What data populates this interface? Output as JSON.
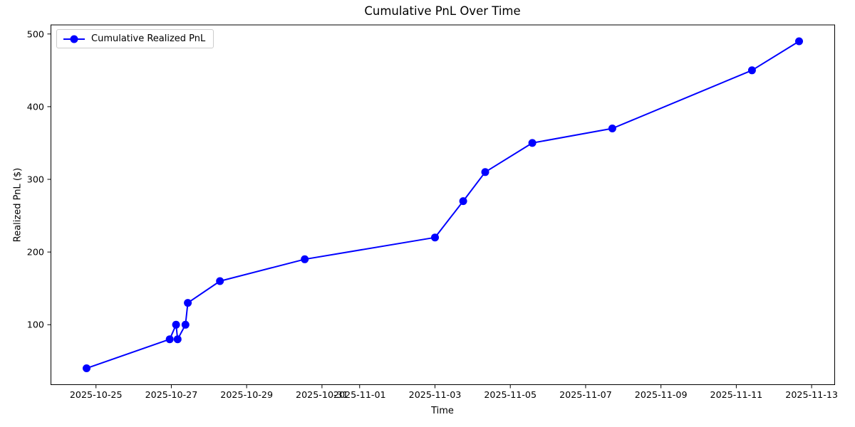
{
  "figure": {
    "background_color": "#ffffff",
    "text_color": "#000000",
    "spine_color": "#000000"
  },
  "chart_data": {
    "type": "line",
    "title": "Cumulative PnL Over Time",
    "xlabel": "Time",
    "ylabel": "Realized PnL ($)",
    "grid": false,
    "legend_position": "upper left",
    "axis_margins": 0.05,
    "ylim": [
      17.5,
      512.5
    ],
    "series": [
      {
        "name": "Cumulative Realized PnL",
        "color": "#0000ff",
        "marker": "circle",
        "points": [
          {
            "time": "2025-10-24T18:00",
            "value": 40
          },
          {
            "time": "2025-10-26T23:00",
            "value": 80
          },
          {
            "time": "2025-10-27T03:00",
            "value": 100
          },
          {
            "time": "2025-10-27T04:00",
            "value": 80
          },
          {
            "time": "2025-10-27T09:00",
            "value": 100
          },
          {
            "time": "2025-10-27T10:30",
            "value": 130
          },
          {
            "time": "2025-10-28T07:00",
            "value": 160
          },
          {
            "time": "2025-10-30T13:00",
            "value": 190
          },
          {
            "time": "2025-11-03T00:00",
            "value": 220
          },
          {
            "time": "2025-11-03T18:00",
            "value": 270
          },
          {
            "time": "2025-11-04T08:00",
            "value": 310
          },
          {
            "time": "2025-11-05T14:00",
            "value": 350
          },
          {
            "time": "2025-11-07T17:00",
            "value": 370
          },
          {
            "time": "2025-11-11T10:00",
            "value": 450
          },
          {
            "time": "2025-11-12T16:00",
            "value": 490
          }
        ]
      }
    ],
    "x_ticks": [
      {
        "time": "2025-10-25T00:00",
        "label": "2025-10-25"
      },
      {
        "time": "2025-10-27T00:00",
        "label": "2025-10-27"
      },
      {
        "time": "2025-10-29T00:00",
        "label": "2025-10-29"
      },
      {
        "time": "2025-10-31T00:00",
        "label": "2025-10-31"
      },
      {
        "time": "2025-11-01T00:00",
        "label": "2025-11-01"
      },
      {
        "time": "2025-11-03T00:00",
        "label": "2025-11-03"
      },
      {
        "time": "2025-11-05T00:00",
        "label": "2025-11-05"
      },
      {
        "time": "2025-11-07T00:00",
        "label": "2025-11-07"
      },
      {
        "time": "2025-11-09T00:00",
        "label": "2025-11-09"
      },
      {
        "time": "2025-11-11T00:00",
        "label": "2025-11-11"
      },
      {
        "time": "2025-11-13T00:00",
        "label": "2025-11-13"
      }
    ],
    "y_ticks": [
      100,
      200,
      300,
      400,
      500
    ]
  }
}
